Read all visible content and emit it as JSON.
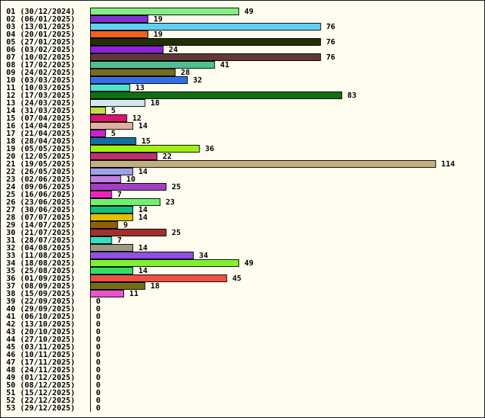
{
  "chart_data": {
    "type": "bar",
    "orientation": "horizontal",
    "title": "",
    "xlabel": "",
    "ylabel": "",
    "xlim": [
      0,
      114
    ],
    "grid": false,
    "legend": "none",
    "background_color": "#fefdf0",
    "categories": [
      "01 (30/12/2024)",
      "02 (06/01/2025)",
      "03 (13/01/2025)",
      "04 (20/01/2025)",
      "05 (27/01/2025)",
      "06 (03/02/2025)",
      "07 (10/02/2025)",
      "08 (17/02/2025)",
      "09 (24/02/2025)",
      "10 (03/03/2025)",
      "11 (10/03/2025)",
      "12 (17/03/2025)",
      "13 (24/03/2025)",
      "14 (31/03/2025)",
      "15 (07/04/2025)",
      "16 (14/04/2025)",
      "17 (21/04/2025)",
      "18 (28/04/2025)",
      "19 (05/05/2025)",
      "20 (12/05/2025)",
      "21 (19/05/2025)",
      "22 (26/05/2025)",
      "23 (02/06/2025)",
      "24 (09/06/2025)",
      "25 (16/06/2025)",
      "26 (23/06/2025)",
      "27 (30/06/2025)",
      "28 (07/07/2025)",
      "29 (14/07/2025)",
      "30 (21/07/2025)",
      "31 (28/07/2025)",
      "32 (04/08/2025)",
      "33 (11/08/2025)",
      "34 (18/08/2025)",
      "35 (25/08/2025)",
      "36 (01/09/2025)",
      "37 (08/09/2025)",
      "38 (15/09/2025)",
      "39 (22/09/2025)",
      "40 (29/09/2025)",
      "41 (06/10/2025)",
      "42 (13/10/2025)",
      "43 (20/10/2025)",
      "44 (27/10/2025)",
      "45 (03/11/2025)",
      "46 (10/11/2025)",
      "47 (17/11/2025)",
      "48 (24/11/2025)",
      "49 (01/12/2025)",
      "50 (08/12/2025)",
      "51 (15/12/2025)",
      "52 (22/12/2025)",
      "53 (29/12/2025)"
    ],
    "values": [
      49,
      19,
      76,
      19,
      76,
      24,
      76,
      41,
      28,
      32,
      13,
      83,
      18,
      5,
      12,
      14,
      5,
      15,
      36,
      22,
      114,
      14,
      10,
      25,
      7,
      23,
      14,
      14,
      9,
      25,
      7,
      14,
      34,
      49,
      14,
      45,
      18,
      11,
      0,
      0,
      0,
      0,
      0,
      0,
      0,
      0,
      0,
      0,
      0,
      0,
      0,
      0,
      0
    ],
    "colors": [
      "#80f080",
      "#8030d0",
      "#60d0f0",
      "#f06020",
      "#203000",
      "#9020e0",
      "#603838",
      "#50c090",
      "#707020",
      "#3070f0",
      "#50e0d0",
      "#107010",
      "#d0e8f0",
      "#c0e040",
      "#e01070",
      "#e0b0a0",
      "#d020d0",
      "#1070a0",
      "#a0f010",
      "#c03070",
      "#c0b080",
      "#a0a0f0",
      "#c080e0",
      "#a040c0",
      "#f020c0",
      "#70f070",
      "#10c080",
      "#e0c000",
      "#906000",
      "#a03030",
      "#30e0c0",
      "#a09880",
      "#9050e0",
      "#80f030",
      "#30e060",
      "#f05040",
      "#707010",
      "#f050d0",
      "#ffffff",
      "#ffffff",
      "#ffffff",
      "#ffffff",
      "#ffffff",
      "#ffffff",
      "#ffffff",
      "#ffffff",
      "#ffffff",
      "#ffffff",
      "#ffffff",
      "#ffffff",
      "#ffffff",
      "#ffffff",
      "#ffffff"
    ]
  }
}
